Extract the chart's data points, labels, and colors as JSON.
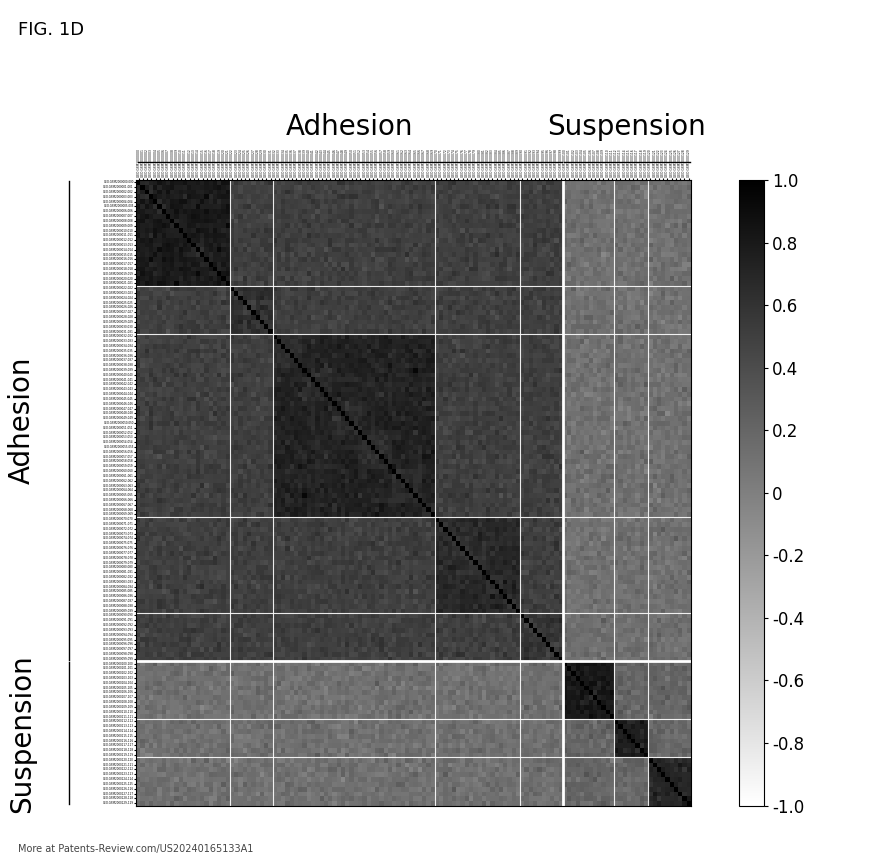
{
  "title": "FIG. 1D",
  "col_label_adhesion": "Adhesion",
  "col_label_suspension": "Suspension",
  "row_label_adhesion": "Adhesion",
  "row_label_suspension": "Suspension",
  "colorbar_ticks": [
    1.0,
    0.8,
    0.6,
    0.4,
    0.2,
    0.0,
    -0.2,
    -0.4,
    -0.6,
    -0.8,
    -1.0
  ],
  "colorbar_ticklabels": [
    "1.0",
    "0.8",
    "0.6",
    "0.4",
    "0.2",
    "0",
    "-0.2",
    "-0.4",
    "-0.6",
    "-0.8",
    "-1.0"
  ],
  "n_adhesion": 100,
  "n_suspension": 30,
  "background_color": "#ffffff",
  "watermark": "More at Patents-Review.com/US20240165133A1",
  "figsize": [
    8.8,
    8.57
  ],
  "dpi": 100,
  "adh_block_sizes": [
    22,
    10,
    38,
    20,
    10
  ],
  "adh_block_corrs": [
    0.72,
    0.55,
    0.65,
    0.6,
    0.5
  ],
  "sus_block_sizes": [
    12,
    8,
    10
  ],
  "sus_block_corrs": [
    0.8,
    0.75,
    0.7
  ],
  "cross_adh_adh_base": 0.5,
  "cross_adh_sus_base": 0.12,
  "vmin": -1.0,
  "vmax": 1.0
}
